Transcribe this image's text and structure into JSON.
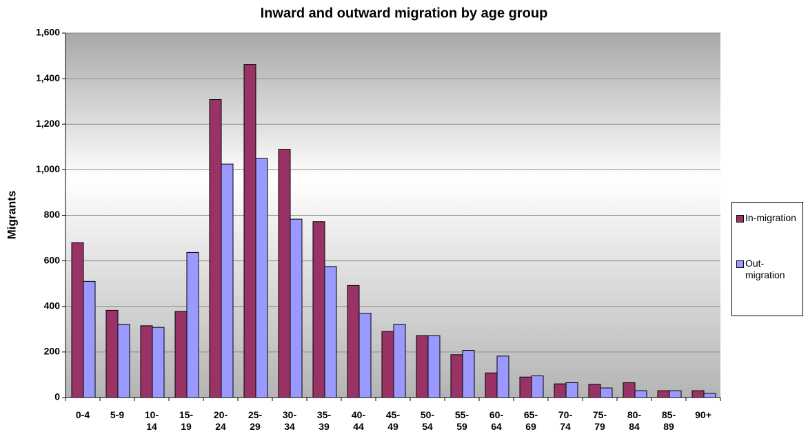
{
  "chart_data": {
    "type": "bar",
    "title": "Inward and outward migration by age group",
    "y_label": "Migrants",
    "categories": [
      "0-4",
      "5-9",
      "10-14",
      "15-19",
      "20-24",
      "25-29",
      "30-34",
      "35-39",
      "40-44",
      "45-49",
      "50-54",
      "55-59",
      "60-64",
      "65-69",
      "70-74",
      "75-79",
      "80-84",
      "85-89",
      "90+"
    ],
    "series": [
      {
        "name": "In-migration",
        "color": "#993366",
        "values": [
          680,
          383,
          315,
          378,
          1308,
          1462,
          1090,
          772,
          492,
          290,
          272,
          188,
          108,
          90,
          60,
          58,
          65,
          30,
          30
        ]
      },
      {
        "name": "Out-migration",
        "color": "#9999ff",
        "values": [
          510,
          322,
          308,
          637,
          1025,
          1050,
          783,
          575,
          370,
          322,
          272,
          207,
          182,
          95,
          65,
          42,
          30,
          30,
          18
        ]
      }
    ],
    "ylim": [
      0,
      1600
    ],
    "yticks": [
      0,
      200,
      400,
      600,
      800,
      {
        "value": 1000,
        "label": "1,000"
      },
      {
        "value": 1200,
        "label": "1,200"
      },
      {
        "value": 1400,
        "label": "1,400"
      },
      {
        "value": 1600,
        "label": "1,600"
      }
    ],
    "grid": true,
    "legend": "right"
  }
}
